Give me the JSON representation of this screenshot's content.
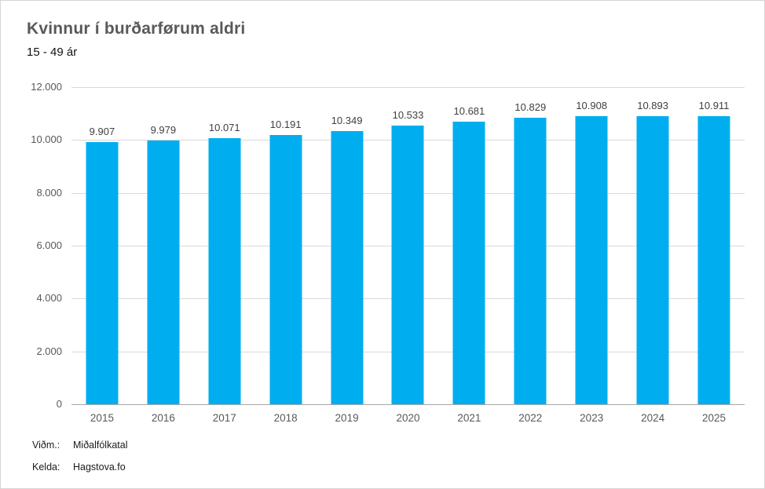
{
  "chart_data": {
    "type": "bar",
    "title": "Kvinnur í burðarførum aldri",
    "subtitle": "15 - 49 ár",
    "categories": [
      "2015",
      "2016",
      "2017",
      "2018",
      "2019",
      "2020",
      "2021",
      "2022",
      "2023",
      "2024",
      "2025"
    ],
    "values": [
      9907,
      9979,
      10071,
      10191,
      10349,
      10533,
      10681,
      10829,
      10908,
      10893,
      10911
    ],
    "value_labels": [
      "9.907",
      "9.979",
      "10.071",
      "10.191",
      "10.349",
      "10.533",
      "10.681",
      "10.829",
      "10.908",
      "10.893",
      "10.911"
    ],
    "xlabel": "",
    "ylabel": "",
    "ylim": [
      0,
      12000
    ],
    "yticks": [
      0,
      2000,
      4000,
      6000,
      8000,
      10000,
      12000
    ],
    "ytick_labels": [
      "0",
      "2.000",
      "4.000",
      "6.000",
      "8.000",
      "10.000",
      "12.000"
    ],
    "grid": true,
    "legend": "none"
  },
  "footer": {
    "rows": [
      {
        "label": "Viðm.:",
        "value": "Miðalfólkatal"
      },
      {
        "label": "Kelda:",
        "value": "Hagstova.fo"
      }
    ]
  },
  "colors": {
    "bar": "#00AEEF",
    "title_text": "#595959",
    "axis_text": "#595959",
    "data_label_text": "#404040",
    "gridline": "#D9D9D9",
    "axis_line": "#A6A6A6",
    "page_border": "#D6D6D6"
  }
}
